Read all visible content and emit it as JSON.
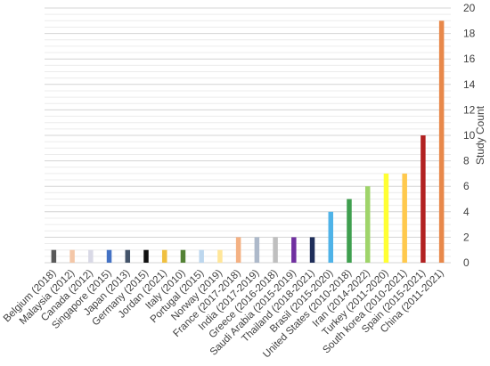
{
  "chart_data": {
    "type": "bar",
    "title": "",
    "xlabel": "",
    "ylabel": "Study Count",
    "y_axis_position": "right",
    "ylim": [
      0,
      20
    ],
    "y_tick_step": 2,
    "grid": true,
    "legend": "none",
    "categories": [
      "Belgium (2018)",
      "Malaysia (2012)",
      "Canada (2012)",
      "Singapore (2015)",
      "Japan (2013)",
      "Germany (2015)",
      "Jordan (2021)",
      "Italy (2010)",
      "Portugal (2015)",
      "Norway (2019)",
      "France (2017-2018)",
      "India (2017-2019)",
      "Greece (2016-2018)",
      "Saudi Arabia (2015-2019)",
      "Thailand (2018-2021)",
      "Brasil (2015-2020)",
      "United States (2010-2018)",
      "Iran (2014-2022)",
      "Turkey (2011-2020)",
      "South korea (2010-2021)",
      "Spain (2015-2021)",
      "China (2011-2021)"
    ],
    "values": [
      1,
      1,
      1,
      1,
      1,
      1,
      1,
      1,
      1,
      1,
      2,
      2,
      2,
      2,
      2,
      4,
      5,
      6,
      7,
      7,
      10,
      19
    ],
    "colors": [
      "#595959",
      "#f4c7a8",
      "#d9d9e6",
      "#4472c4",
      "#44546a",
      "#111111",
      "#f0c040",
      "#548235",
      "#bdd7ee",
      "#ffe699",
      "#f4b183",
      "#adb9ca",
      "#bfbfbf",
      "#7030a0",
      "#1f2e5a",
      "#4fb3e8",
      "#3f9f4f",
      "#9fd46a",
      "#ffff33",
      "#ffc94d",
      "#b22222",
      "#e8884a"
    ]
  }
}
